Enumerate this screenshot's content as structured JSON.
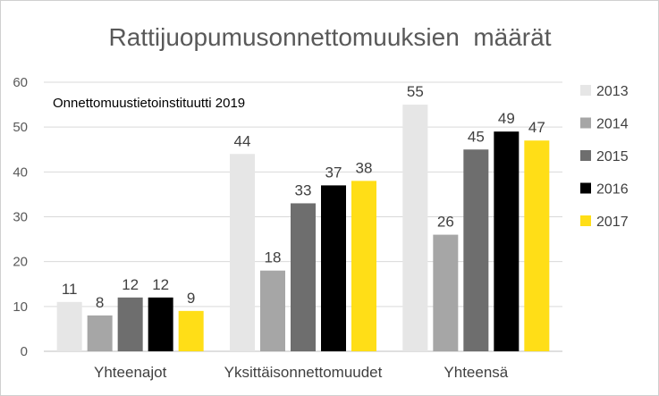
{
  "chart_data": {
    "type": "bar",
    "title": "Rattijuopumusonnettomuuksien  määrät",
    "subtitle": "Onnettomuustietoinstituutti 2019",
    "categories": [
      "Yhteenajot",
      "Yksittäisonnettomuudet",
      "Yhteensä"
    ],
    "series": [
      {
        "name": "2013",
        "color": "#e6e6e6",
        "values": [
          11,
          44,
          55
        ]
      },
      {
        "name": "2014",
        "color": "#a6a6a6",
        "values": [
          8,
          18,
          26
        ]
      },
      {
        "name": "2015",
        "color": "#6e6e6e",
        "values": [
          12,
          33,
          45
        ]
      },
      {
        "name": "2016",
        "color": "#000000",
        "values": [
          12,
          37,
          49
        ]
      },
      {
        "name": "2017",
        "color": "#ffde17",
        "values": [
          9,
          38,
          47
        ]
      }
    ],
    "ylim": [
      0,
      60
    ],
    "yticks": [
      "0",
      "10",
      "20",
      "30",
      "40",
      "50",
      "60"
    ],
    "grid": true,
    "legend": "right",
    "xlabel": "",
    "ylabel": ""
  }
}
